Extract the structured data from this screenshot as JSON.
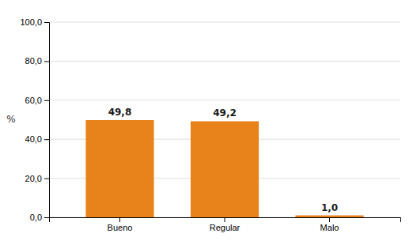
{
  "chart_data": {
    "type": "bar",
    "categories": [
      "Bueno",
      "Regular",
      "Malo"
    ],
    "values": [
      49.8,
      49.2,
      1.0
    ],
    "value_labels": [
      "49,8",
      "49,2",
      "1,0"
    ],
    "data_labels": true,
    "color": "#E8821A",
    "ylabel": "%",
    "ylim": [
      0,
      100
    ],
    "yticks": [
      {
        "value": 0.0,
        "label": "0,0"
      },
      {
        "value": 20.0,
        "label": "20,0"
      },
      {
        "value": 40.0,
        "label": "40,0"
      },
      {
        "value": 60.0,
        "label": "60,0"
      },
      {
        "value": 80.0,
        "label": "80,0"
      },
      {
        "value": 100.0,
        "label": "100,0"
      }
    ],
    "grid": true
  }
}
